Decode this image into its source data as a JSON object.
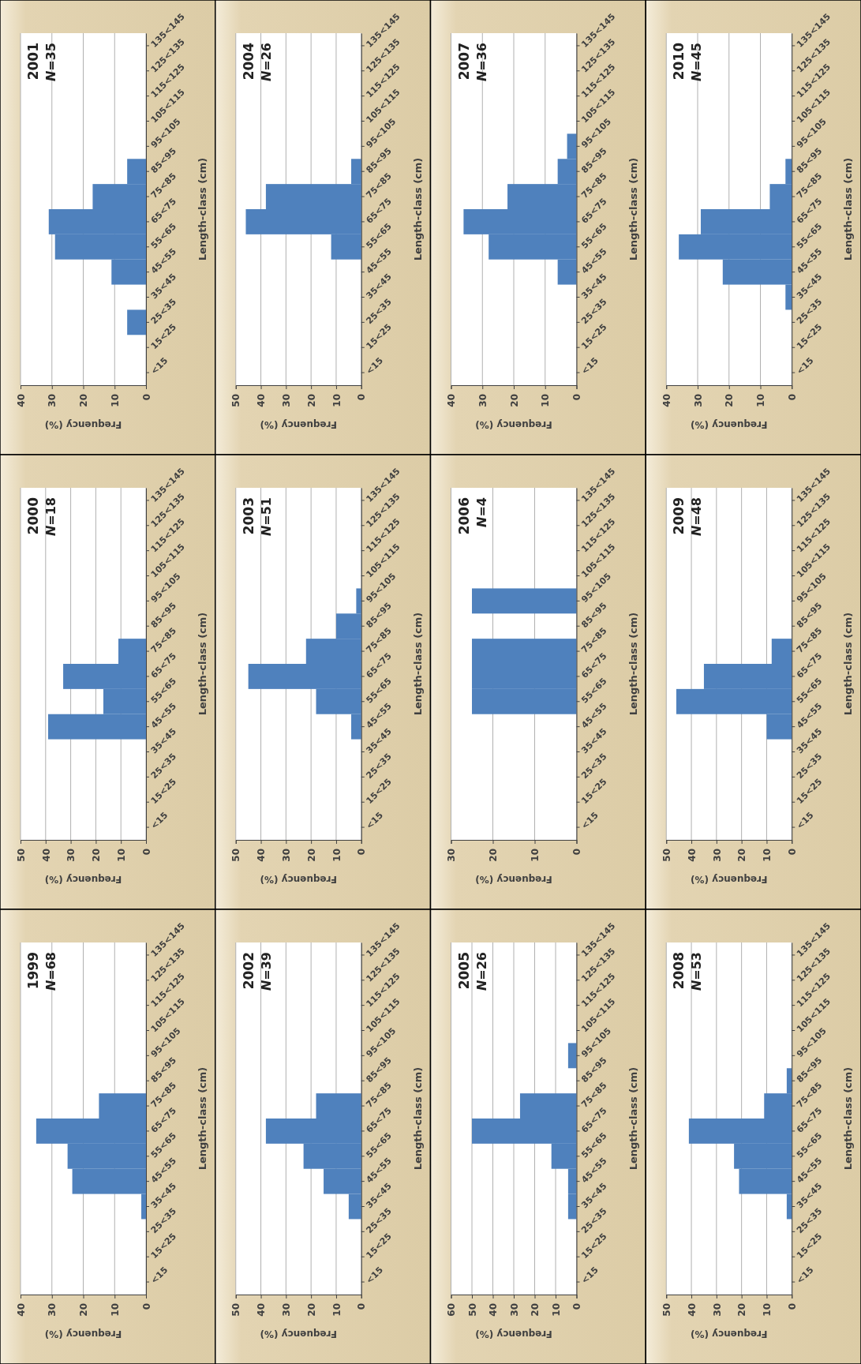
{
  "chart_data": [
    {
      "type": "bar",
      "orientation": "horizontal",
      "title": "2001",
      "subtitle": "N=35",
      "xlabel": "Frequency (%)",
      "ylabel": "Length-class (cm)",
      "categories": [
        "135<145",
        "125<135",
        "115<125",
        "105<115",
        "95<105",
        "85<95",
        "75<85",
        "65<75",
        "55<65",
        "45<55",
        "35<45",
        "25<35",
        "15<25",
        "<15"
      ],
      "values": [
        0,
        0,
        0,
        0,
        0,
        6,
        17,
        31,
        29,
        11,
        0,
        6,
        0,
        0
      ],
      "color": "#4f81bd",
      "xlim": [
        40,
        0
      ],
      "xticks": [
        40,
        30,
        20,
        10,
        0
      ],
      "grid": "x"
    },
    {
      "type": "bar",
      "orientation": "horizontal",
      "title": "2004",
      "subtitle": "N=26",
      "xlabel": "Frequency (%)",
      "ylabel": "Length-class (cm)",
      "categories": [
        "135<145",
        "125<135",
        "115<125",
        "105<115",
        "95<105",
        "85<95",
        "75<85",
        "65<75",
        "55<65",
        "45<55",
        "35<45",
        "25<35",
        "15<25",
        "<15"
      ],
      "values": [
        0,
        0,
        0,
        0,
        0,
        4,
        38,
        46,
        12,
        0,
        0,
        0,
        0,
        0
      ],
      "color": "#4f81bd",
      "xlim": [
        50,
        0
      ],
      "xticks": [
        50,
        40,
        30,
        20,
        10,
        0
      ],
      "grid": "x"
    },
    {
      "type": "bar",
      "orientation": "horizontal",
      "title": "2007",
      "subtitle": "N=36",
      "xlabel": "Frequency (%)",
      "ylabel": "Length-class (cm)",
      "categories": [
        "135<145",
        "125<135",
        "115<125",
        "105<115",
        "95<105",
        "85<95",
        "75<85",
        "65<75",
        "55<65",
        "45<55",
        "35<45",
        "25<35",
        "15<25",
        "<15"
      ],
      "values": [
        0,
        0,
        0,
        0,
        3,
        6,
        22,
        36,
        28,
        6,
        0,
        0,
        0,
        0
      ],
      "color": "#4f81bd",
      "xlim": [
        40,
        0
      ],
      "xticks": [
        40,
        30,
        20,
        10,
        0
      ],
      "grid": "x"
    },
    {
      "type": "bar",
      "orientation": "horizontal",
      "title": "2010",
      "subtitle": "N=45",
      "xlabel": "Frequency (%)",
      "ylabel": "Length-class (cm)",
      "categories": [
        "135<145",
        "125<135",
        "115<125",
        "105<115",
        "95<105",
        "85<95",
        "75<85",
        "65<75",
        "55<65",
        "45<55",
        "35<45",
        "25<35",
        "15<25",
        "<15"
      ],
      "values": [
        0,
        0,
        0,
        0,
        0,
        2,
        7,
        29,
        36,
        22,
        2,
        0,
        0,
        0
      ],
      "color": "#4f81bd",
      "xlim": [
        40,
        0
      ],
      "xticks": [
        40,
        30,
        20,
        10,
        0
      ],
      "grid": "x"
    },
    {
      "type": "bar",
      "orientation": "horizontal",
      "title": "2000",
      "subtitle": "N=18",
      "xlabel": "Frequency (%)",
      "ylabel": "Length-class (cm)",
      "categories": [
        "135<145",
        "125<135",
        "115<125",
        "105<115",
        "95<105",
        "85<95",
        "75<85",
        "65<75",
        "55<65",
        "45<55",
        "35<45",
        "25<35",
        "15<25",
        "<15"
      ],
      "values": [
        0,
        0,
        0,
        0,
        0,
        0,
        11,
        33,
        17,
        39,
        0,
        0,
        0,
        0
      ],
      "color": "#4f81bd",
      "xlim": [
        50,
        0
      ],
      "xticks": [
        50,
        40,
        30,
        20,
        10,
        0
      ],
      "grid": "x"
    },
    {
      "type": "bar",
      "orientation": "horizontal",
      "title": "2003",
      "subtitle": "N=51",
      "xlabel": "Frequency (%)",
      "ylabel": "Length-class (cm)",
      "categories": [
        "135<145",
        "125<135",
        "115<125",
        "105<115",
        "95<105",
        "85<95",
        "75<85",
        "65<75",
        "55<65",
        "45<55",
        "35<45",
        "25<35",
        "15<25",
        "<15"
      ],
      "values": [
        0,
        0,
        0,
        0,
        2,
        10,
        22,
        45,
        18,
        4,
        0,
        0,
        0,
        0
      ],
      "color": "#4f81bd",
      "xlim": [
        50,
        0
      ],
      "xticks": [
        50,
        40,
        30,
        20,
        10,
        0
      ],
      "grid": "x"
    },
    {
      "type": "bar",
      "orientation": "horizontal",
      "title": "2006",
      "subtitle": "N=4",
      "xlabel": "Frequency (%)",
      "ylabel": "Length-class (cm)",
      "categories": [
        "135<145",
        "125<135",
        "115<125",
        "105<115",
        "95<105",
        "85<95",
        "75<85",
        "65<75",
        "55<65",
        "45<55",
        "35<45",
        "25<35",
        "15<25",
        "<15"
      ],
      "values": [
        0,
        0,
        0,
        0,
        25,
        0,
        25,
        25,
        25,
        0,
        0,
        0,
        0,
        0
      ],
      "color": "#4f81bd",
      "xlim": [
        30,
        0
      ],
      "xticks": [
        30,
        20,
        10,
        0
      ],
      "grid": "x"
    },
    {
      "type": "bar",
      "orientation": "horizontal",
      "title": "2009",
      "subtitle": "N=48",
      "xlabel": "Frequency (%)",
      "ylabel": "Length-class (cm)",
      "categories": [
        "135<145",
        "125<135",
        "115<125",
        "105<115",
        "95<105",
        "85<95",
        "75<85",
        "65<75",
        "55<65",
        "45<55",
        "35<45",
        "25<35",
        "15<25",
        "<15"
      ],
      "values": [
        0,
        0,
        0,
        0,
        0,
        0,
        8,
        35,
        46,
        10,
        0,
        0,
        0,
        0
      ],
      "color": "#4f81bd",
      "xlim": [
        50,
        0
      ],
      "xticks": [
        50,
        40,
        30,
        20,
        10,
        0
      ],
      "grid": "x"
    },
    {
      "type": "bar",
      "orientation": "horizontal",
      "title": "1999",
      "subtitle": "N=68",
      "xlabel": "Frequency (%)",
      "ylabel": "Length-class (cm)",
      "categories": [
        "135<145",
        "125<135",
        "115<125",
        "105<115",
        "95<105",
        "85<95",
        "75<85",
        "65<75",
        "55<65",
        "45<55",
        "35<45",
        "25<35",
        "15<25",
        "<15"
      ],
      "values": [
        0,
        0,
        0,
        0,
        0,
        0,
        15,
        35,
        25,
        23.5,
        1.5,
        0,
        0,
        0
      ],
      "color": "#4f81bd",
      "xlim": [
        40,
        0
      ],
      "xticks": [
        40,
        30,
        20,
        10,
        0
      ],
      "grid": "x"
    },
    {
      "type": "bar",
      "orientation": "horizontal",
      "title": "2002",
      "subtitle": "N=39",
      "xlabel": "Frequency (%)",
      "ylabel": "Length-class (cm)",
      "categories": [
        "135<145",
        "125<135",
        "115<125",
        "105<115",
        "95<105",
        "85<95",
        "75<85",
        "65<75",
        "55<65",
        "45<55",
        "35<45",
        "25<35",
        "15<25",
        "<15"
      ],
      "values": [
        0,
        0,
        0,
        0,
        0,
        0,
        18,
        38,
        23,
        15,
        5,
        0,
        0,
        0
      ],
      "color": "#4f81bd",
      "xlim": [
        50,
        0
      ],
      "xticks": [
        50,
        40,
        30,
        20,
        10,
        0
      ],
      "grid": "x"
    },
    {
      "type": "bar",
      "orientation": "horizontal",
      "title": "2005",
      "subtitle": "N=26",
      "xlabel": "Frequency (%)",
      "ylabel": "Length-class (cm)",
      "categories": [
        "135<145",
        "125<135",
        "115<125",
        "105<115",
        "95<105",
        "85<95",
        "75<85",
        "65<75",
        "55<65",
        "45<55",
        "35<45",
        "25<35",
        "15<25",
        "<15"
      ],
      "values": [
        0,
        0,
        0,
        0,
        4,
        0,
        27,
        50,
        12,
        4,
        4,
        0,
        0,
        0
      ],
      "color": "#4f81bd",
      "xlim": [
        60,
        0
      ],
      "xticks": [
        60,
        50,
        40,
        30,
        20,
        10,
        0
      ],
      "grid": "x"
    },
    {
      "type": "bar",
      "orientation": "horizontal",
      "title": "2008",
      "subtitle": "N=53",
      "xlabel": "Frequency (%)",
      "ylabel": "Length-class (cm)",
      "categories": [
        "135<145",
        "125<135",
        "115<125",
        "105<115",
        "95<105",
        "85<95",
        "75<85",
        "65<75",
        "55<65",
        "45<55",
        "35<45",
        "25<35",
        "15<25",
        "<15"
      ],
      "values": [
        0,
        0,
        0,
        0,
        0,
        2,
        11,
        41,
        23,
        21,
        2,
        0,
        0,
        0
      ],
      "color": "#4f81bd",
      "xlim": [
        50,
        0
      ],
      "xticks": [
        50,
        40,
        30,
        20,
        10,
        0
      ],
      "grid": "x"
    }
  ]
}
